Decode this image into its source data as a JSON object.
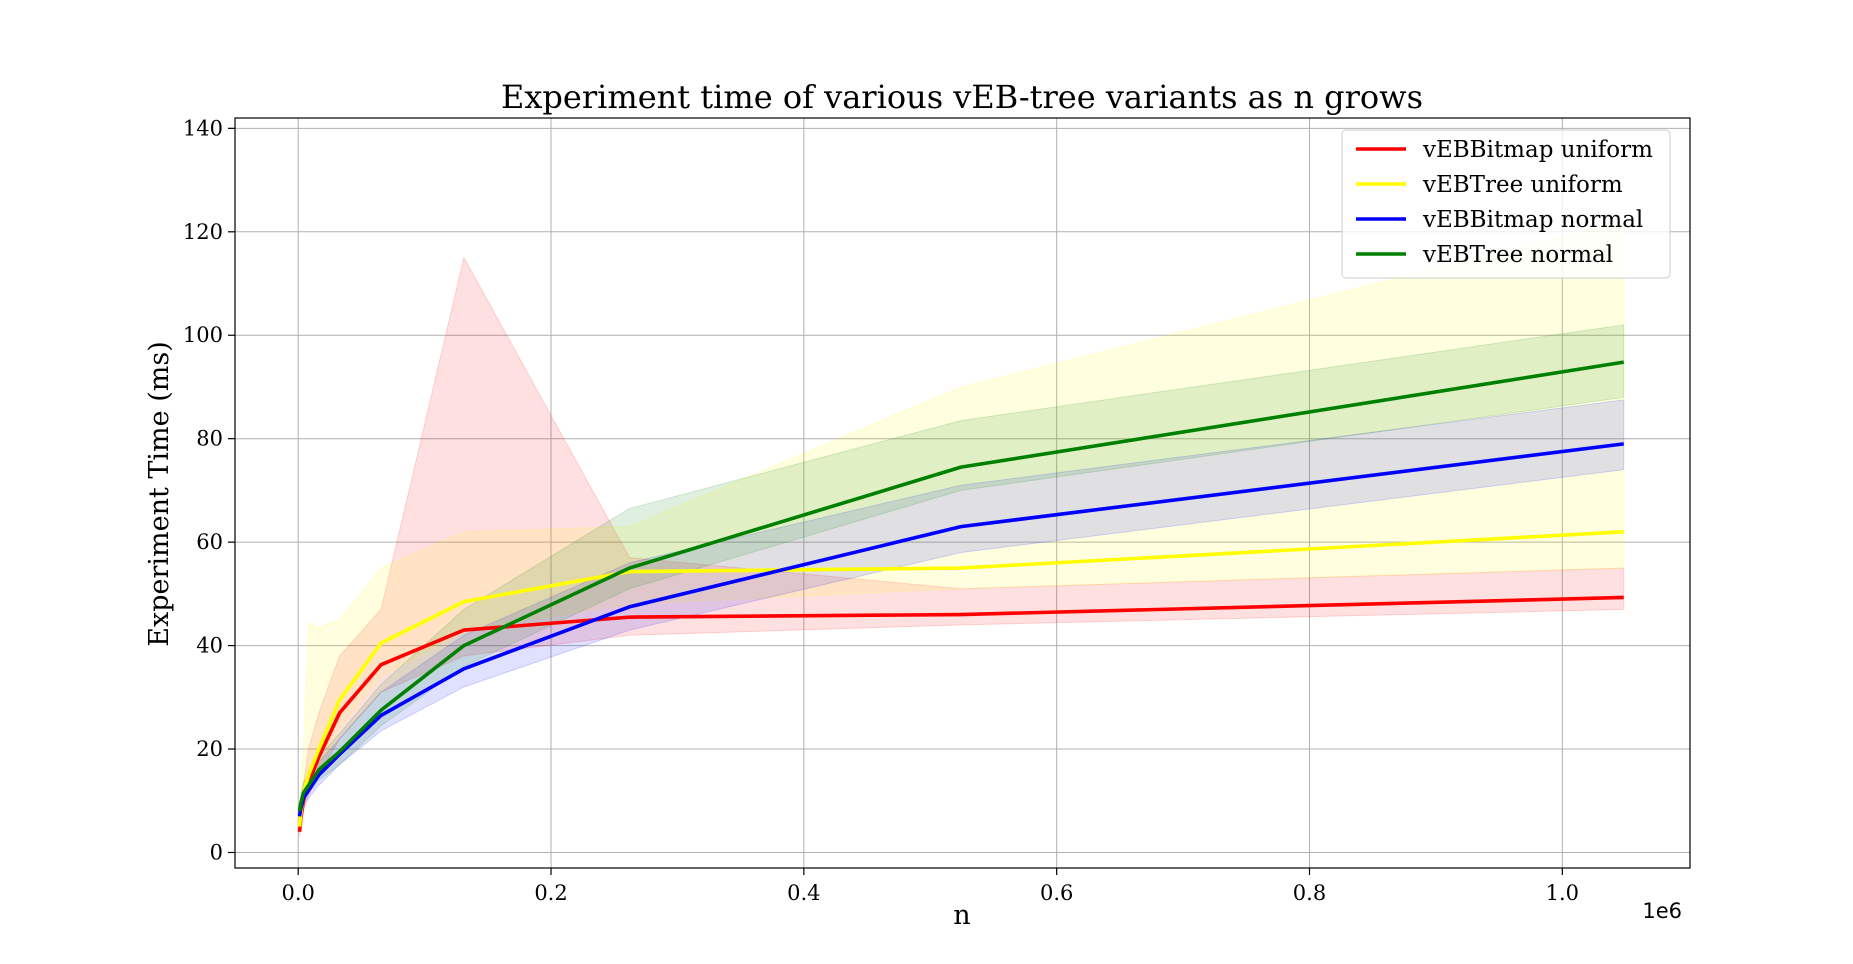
{
  "chart_data": {
    "type": "line",
    "title": "Experiment time of various vEB-tree variants as n grows",
    "xlabel": "n",
    "ylabel": "Experiment Time (ms)",
    "x_offset_label": "1e6",
    "xlim": [
      -50000,
      1101000
    ],
    "ylim": [
      -3,
      142
    ],
    "grid": true,
    "legend_position": "upper right",
    "x_ticks": [
      0,
      200000,
      400000,
      600000,
      800000,
      1000000
    ],
    "x_tick_labels": [
      "0.0",
      "0.2",
      "0.4",
      "0.6",
      "0.8",
      "1.0"
    ],
    "y_ticks": [
      0,
      20,
      40,
      60,
      80,
      100,
      120,
      140
    ],
    "y_tick_labels": [
      "0",
      "20",
      "40",
      "60",
      "80",
      "100",
      "120",
      "140"
    ],
    "x": [
      1024,
      2048,
      4096,
      8192,
      16384,
      32768,
      65536,
      131072,
      262144,
      524288,
      1048576
    ],
    "series": [
      {
        "name": "vEBBitmap uniform",
        "color": "#ff0000",
        "values": [
          4.0,
          6.5,
          10.0,
          13.5,
          18.5,
          27.0,
          36.3,
          43.0,
          45.5,
          46.0,
          49.3
        ],
        "lower": [
          3.0,
          5.0,
          8.0,
          11.0,
          15.0,
          22.0,
          31.0,
          38.0,
          42.0,
          44.0,
          47.0
        ],
        "upper": [
          6.0,
          9.0,
          13.0,
          20.0,
          27.0,
          38.0,
          47.0,
          115.0,
          57.0,
          51.0,
          55.0
        ]
      },
      {
        "name": "vEBTree uniform",
        "color": "#ffff00",
        "values": [
          5.0,
          7.5,
          11.5,
          15.0,
          20.0,
          29.5,
          40.5,
          48.5,
          54.3,
          55.0,
          62.0
        ],
        "lower": [
          4.0,
          6.0,
          9.0,
          12.0,
          16.0,
          24.0,
          34.0,
          43.0,
          48.0,
          51.0,
          55.0
        ],
        "upper": [
          7.0,
          11.0,
          20.0,
          44.5,
          43.5,
          45.0,
          55.0,
          62.0,
          63.0,
          90.0,
          122.0
        ]
      },
      {
        "name": "vEBBitmap normal",
        "color": "#0000ff",
        "values": [
          7.0,
          8.5,
          10.5,
          12.0,
          15.0,
          19.0,
          26.5,
          35.5,
          47.5,
          63.0,
          79.0
        ],
        "lower": [
          6.0,
          7.0,
          9.0,
          10.5,
          13.0,
          17.0,
          23.5,
          32.0,
          43.0,
          58.0,
          74.0
        ],
        "upper": [
          8.5,
          10.0,
          12.5,
          14.0,
          17.5,
          22.0,
          31.0,
          42.0,
          56.0,
          71.0,
          87.5
        ]
      },
      {
        "name": "vEBTree normal",
        "color": "#008000",
        "values": [
          8.0,
          9.5,
          11.5,
          13.0,
          16.0,
          19.5,
          27.5,
          40.0,
          55.0,
          74.5,
          94.8
        ],
        "lower": [
          7.0,
          8.0,
          10.0,
          11.5,
          14.0,
          17.0,
          24.5,
          36.0,
          51.0,
          70.0,
          88.0
        ],
        "upper": [
          9.5,
          11.0,
          13.5,
          15.0,
          18.5,
          23.0,
          32.5,
          47.0,
          66.5,
          83.5,
          102.0
        ]
      }
    ]
  }
}
